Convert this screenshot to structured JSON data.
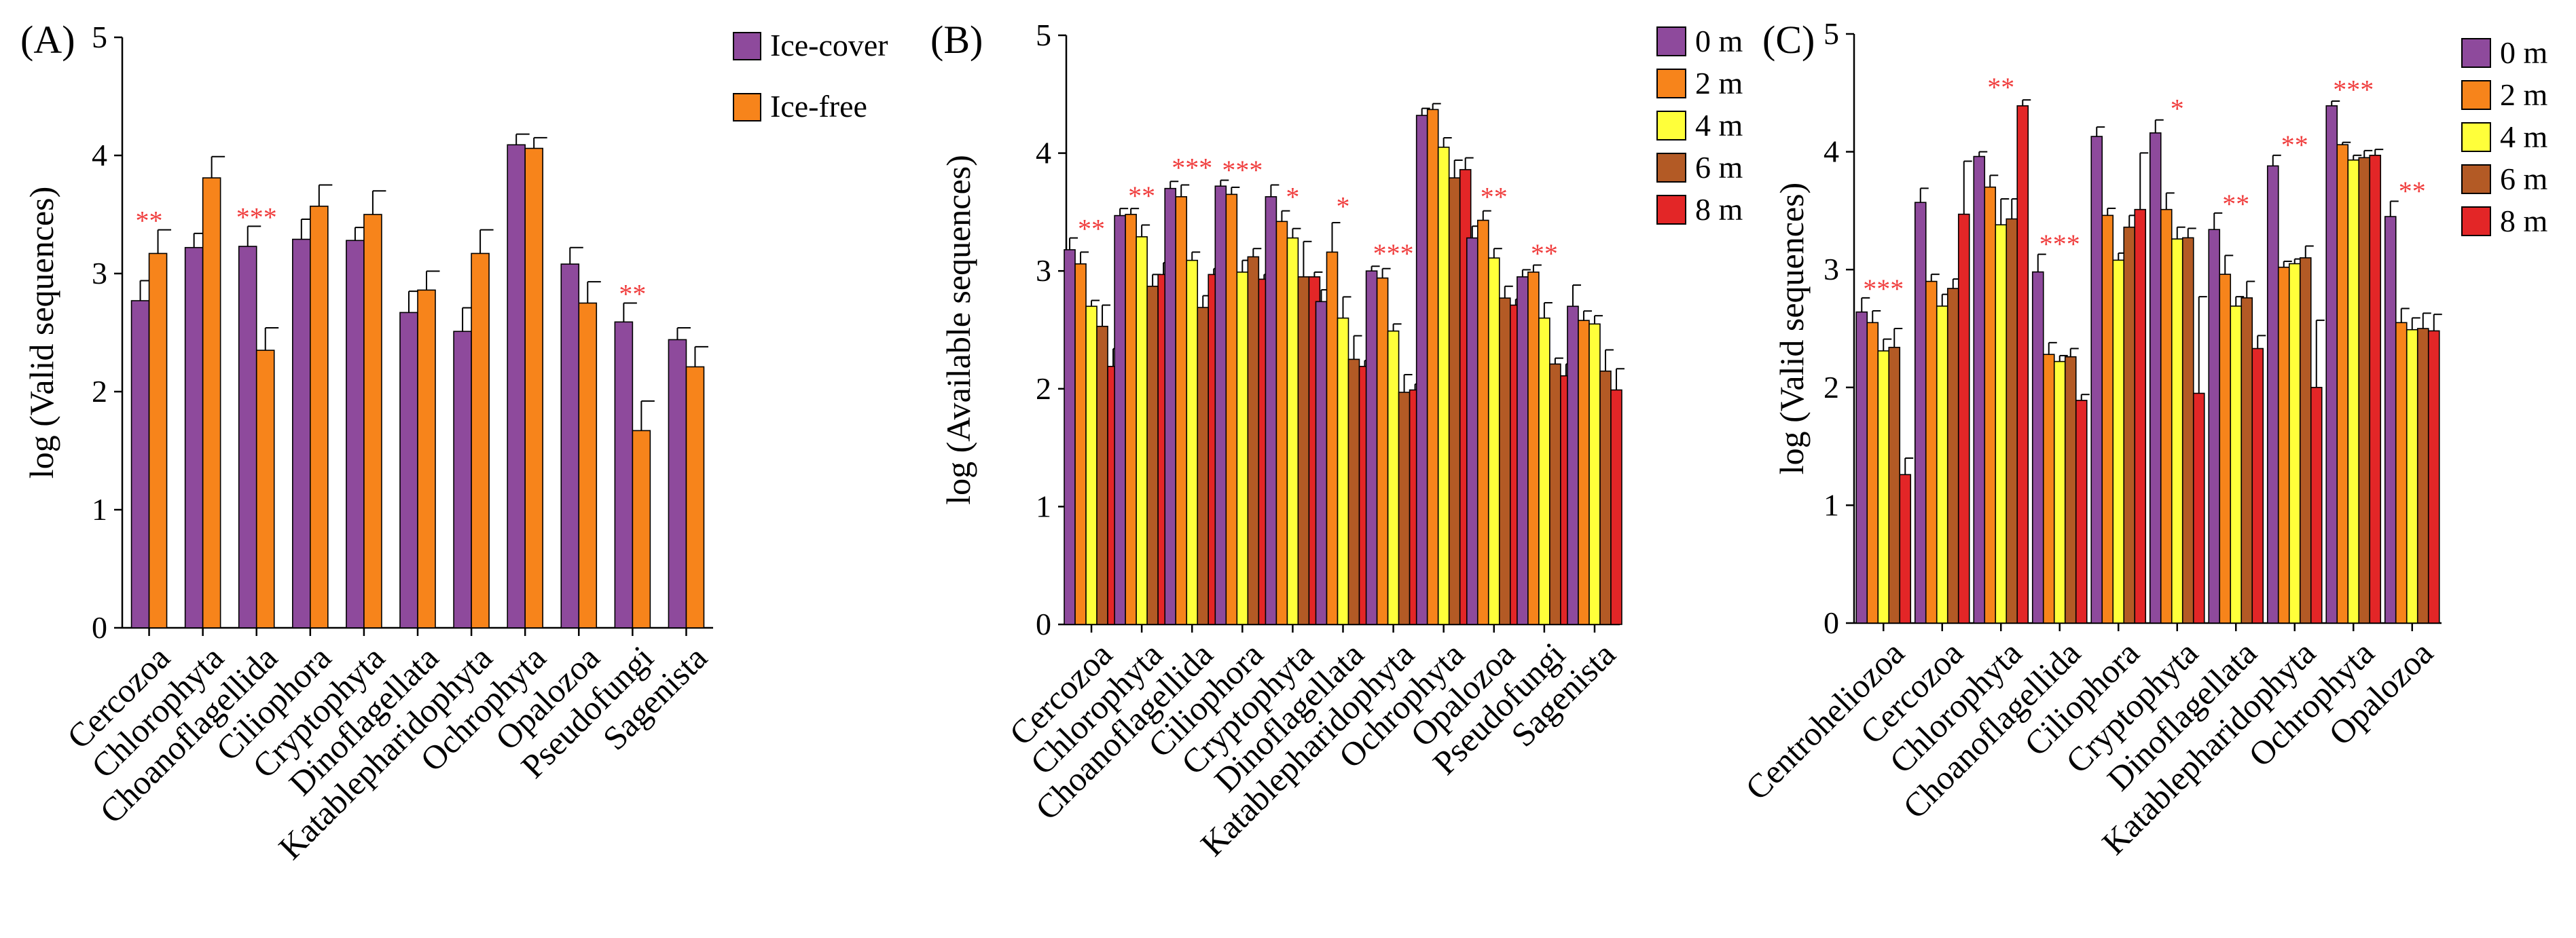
{
  "colors": {
    "Ice-cover": "#8e4a9c",
    "Ice-free": "#f7841b",
    "0 m": "#8e4a9c",
    "2 m": "#f7841b",
    "4 m": "#ffff3a",
    "6 m": "#b35a25",
    "8 m": "#e32627",
    "star": "#f03c3c"
  },
  "chart_data": [
    {
      "type": "bar",
      "panel_label": "(A)",
      "ylabel": "log (Valid sequences)",
      "ylim": [
        0,
        5
      ],
      "yticks": [
        "0",
        "1",
        "2",
        "3",
        "4",
        "5"
      ],
      "categories": [
        "Cercozoa",
        "Chlorophyta",
        "Choanoflagellida",
        "Ciliophora",
        "Cryptophyta",
        "Dinoflagellata",
        "Katablepharidophyta",
        "Ochrophyta",
        "Opalozoa",
        "Pseudofungi",
        "Sagenista"
      ],
      "series": [
        {
          "name": "Ice-cover",
          "values": [
            2.77,
            3.22,
            3.23,
            3.29,
            3.28,
            2.67,
            2.51,
            4.09,
            3.08,
            2.59,
            2.44
          ],
          "errors": [
            0.17,
            0.12,
            0.17,
            0.17,
            0.11,
            0.18,
            0.2,
            0.09,
            0.14,
            0.16,
            0.1
          ]
        },
        {
          "name": "Ice-free",
          "values": [
            3.17,
            3.81,
            2.35,
            3.57,
            3.5,
            2.86,
            3.17,
            4.06,
            2.75,
            1.67,
            2.21
          ],
          "errors": [
            0.2,
            0.18,
            0.19,
            0.18,
            0.2,
            0.16,
            0.2,
            0.09,
            0.18,
            0.25,
            0.17
          ]
        }
      ],
      "annotations": [
        {
          "category": "Cercozoa",
          "text": "**",
          "y": 3.37
        },
        {
          "category": "Choanoflagellida",
          "text": "***",
          "y": 3.4
        },
        {
          "category": "Pseudofungi",
          "text": "**",
          "y": 2.75
        }
      ]
    },
    {
      "type": "bar",
      "panel_label": "(B)",
      "ylabel": "log (Available sequences)",
      "ylim": [
        0,
        5
      ],
      "yticks": [
        "0",
        "1",
        "2",
        "3",
        "4",
        "5"
      ],
      "categories": [
        "Cercozoa",
        "Chlorophyta",
        "Choanoflagellida",
        "Ciliophora",
        "Cryptophyta",
        "Dinoflagellata",
        "Katablepharidophyta",
        "Ochrophyta",
        "Opalozoa",
        "Pseudofungi",
        "Sagenista"
      ],
      "series": [
        {
          "name": "0 m",
          "values": [
            3.18,
            3.47,
            3.7,
            3.72,
            3.63,
            2.74,
            3.0,
            4.32,
            3.28,
            2.95,
            2.7
          ],
          "errors": [
            0.1,
            0.06,
            0.06,
            0.05,
            0.1,
            0.1,
            0.04,
            0.06,
            0.1,
            0.06,
            0.18
          ]
        },
        {
          "name": "2 m",
          "values": [
            3.06,
            3.48,
            3.63,
            3.65,
            3.42,
            3.16,
            2.94,
            4.37,
            3.43,
            2.99,
            2.58
          ],
          "errors": [
            0.1,
            0.05,
            0.1,
            0.06,
            0.09,
            0.25,
            0.08,
            0.05,
            0.08,
            0.06,
            0.08
          ]
        },
        {
          "name": "4 m",
          "values": [
            2.7,
            3.29,
            3.09,
            2.99,
            3.28,
            2.6,
            2.49,
            4.05,
            3.11,
            2.6,
            2.55
          ],
          "errors": [
            0.05,
            0.1,
            0.07,
            0.1,
            0.08,
            0.18,
            0.06,
            0.08,
            0.08,
            0.13,
            0.07
          ]
        },
        {
          "name": "6 m",
          "values": [
            2.53,
            2.87,
            2.69,
            3.12,
            2.95,
            2.25,
            1.97,
            3.79,
            2.77,
            2.21,
            2.15
          ],
          "errors": [
            0.18,
            0.1,
            0.1,
            0.07,
            0.3,
            0.2,
            0.15,
            0.15,
            0.1,
            0.05,
            0.18
          ]
        },
        {
          "name": "8 m",
          "values": [
            2.19,
            2.97,
            2.97,
            2.93,
            2.95,
            2.19,
            1.99,
            3.86,
            2.71,
            2.11,
            1.99
          ],
          "errors": [
            0.15,
            0.1,
            0.05,
            0.04,
            0.04,
            0.05,
            0.05,
            0.1,
            0.05,
            0.1,
            0.18
          ]
        }
      ],
      "annotations": [
        {
          "category": "Cercozoa",
          "text": "**",
          "y": 3.28
        },
        {
          "category": "Chlorophyta",
          "text": "**",
          "y": 3.56
        },
        {
          "category": "Choanoflagellida",
          "text": "***",
          "y": 3.8
        },
        {
          "category": "Ciliophora",
          "text": "***",
          "y": 3.78
        },
        {
          "category": "Cryptophyta",
          "text": "*",
          "y": 3.55
        },
        {
          "category": "Dinoflagellata",
          "text": "*",
          "y": 3.47
        },
        {
          "category": "Katablepharidophyta",
          "text": "***",
          "y": 3.07
        },
        {
          "category": "Opalozoa",
          "text": "**",
          "y": 3.55
        },
        {
          "category": "Pseudofungi",
          "text": "**",
          "y": 3.07
        }
      ]
    },
    {
      "type": "bar",
      "panel_label": "(C)",
      "ylabel": "log (Valid sequences)",
      "ylim": [
        0,
        5
      ],
      "yticks": [
        "0",
        "1",
        "2",
        "3",
        "4",
        "5"
      ],
      "categories": [
        "Centroheliozoa",
        "Cercozoa",
        "Chlorophyta",
        "Choanoflagellida",
        "Ciliophora",
        "Cryptophyta",
        "Dinoflagellata",
        "Katablepharidophyta",
        "Ochrophyta",
        "Opalozoa"
      ],
      "series": [
        {
          "name": "0 m",
          "values": [
            2.64,
            3.57,
            3.96,
            2.98,
            4.13,
            4.16,
            3.34,
            3.88,
            4.39,
            3.45
          ],
          "errors": [
            0.12,
            0.12,
            0.04,
            0.15,
            0.08,
            0.11,
            0.14,
            0.09,
            0.04,
            0.13
          ]
        },
        {
          "name": "2 m",
          "values": [
            2.55,
            2.9,
            3.7,
            2.28,
            3.46,
            3.51,
            2.96,
            3.02,
            4.06,
            2.55
          ],
          "errors": [
            0.1,
            0.06,
            0.1,
            0.1,
            0.06,
            0.14,
            0.16,
            0.05,
            0.02,
            0.12
          ]
        },
        {
          "name": "4 m",
          "values": [
            2.31,
            2.69,
            3.38,
            2.22,
            3.08,
            3.26,
            2.69,
            3.05,
            3.93,
            2.49
          ],
          "errors": [
            0.1,
            0.1,
            0.22,
            0.05,
            0.06,
            0.1,
            0.08,
            0.04,
            0.04,
            0.1
          ]
        },
        {
          "name": "6 m",
          "values": [
            2.34,
            2.84,
            3.43,
            2.26,
            3.36,
            3.27,
            2.76,
            3.1,
            3.95,
            2.5
          ],
          "errors": [
            0.16,
            0.08,
            0.17,
            0.07,
            0.1,
            0.08,
            0.14,
            0.1,
            0.06,
            0.13
          ]
        },
        {
          "name": "8 m",
          "values": [
            1.26,
            3.47,
            4.39,
            1.89,
            3.51,
            1.95,
            2.33,
            2.0,
            3.97,
            2.48
          ],
          "errors": [
            0.14,
            0.45,
            0.05,
            0.05,
            0.48,
            0.82,
            0.11,
            0.57,
            0.05,
            0.14
          ]
        }
      ],
      "annotations": [
        {
          "category": "Centroheliozoa",
          "text": "***",
          "y": 2.76
        },
        {
          "category": "Chlorophyta",
          "text": "**",
          "y": 4.47
        },
        {
          "category": "Choanoflagellida",
          "text": "***",
          "y": 3.14
        },
        {
          "category": "Cryptophyta",
          "text": "*",
          "y": 4.29
        },
        {
          "category": "Dinoflagellata",
          "text": "**",
          "y": 3.48
        },
        {
          "category": "Katablepharidophyta",
          "text": "**",
          "y": 3.98
        },
        {
          "category": "Ochrophyta",
          "text": "***",
          "y": 4.45
        },
        {
          "category": "Opalozoa",
          "text": "**",
          "y": 3.59
        }
      ]
    }
  ]
}
